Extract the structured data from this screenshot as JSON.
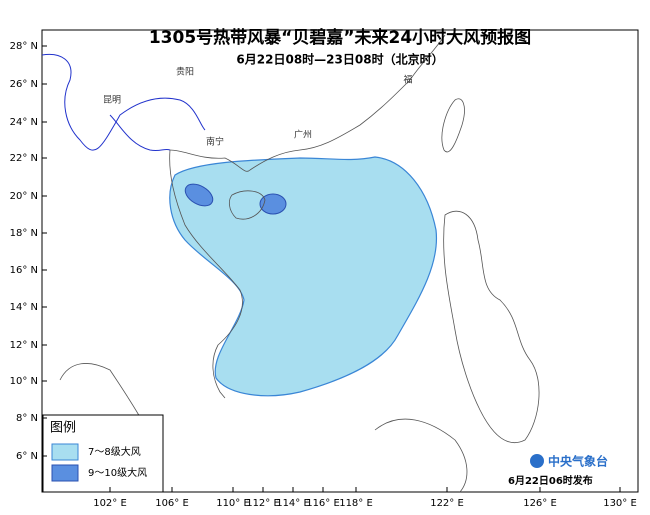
{
  "header": {
    "title": "1305号热带风暴“贝碧嘉”未来24小时大风预报图",
    "subtitle": "6月22日08时—23日08时（北京时）"
  },
  "lat_labels": [
    "28° N",
    "26° N",
    "24° N",
    "22° N",
    "20° N",
    "18° N",
    "16° N",
    "14° N",
    "12° N",
    "10° N",
    "8° N",
    "6° N"
  ],
  "lon_labels": [
    "102° E",
    "106° E",
    "110° E",
    "112° E",
    "114° E",
    "116° E",
    "118° E",
    "122° E",
    "126° E",
    "130° E"
  ],
  "cities": [
    "贵阳",
    "昆明",
    "南宁",
    "广州",
    "福"
  ],
  "legend": {
    "title": "图例",
    "items": [
      "7～8级大风",
      "9～10级大风"
    ]
  },
  "footer": {
    "agency": "中央气象台",
    "issued": "6月22日06时发布"
  }
}
